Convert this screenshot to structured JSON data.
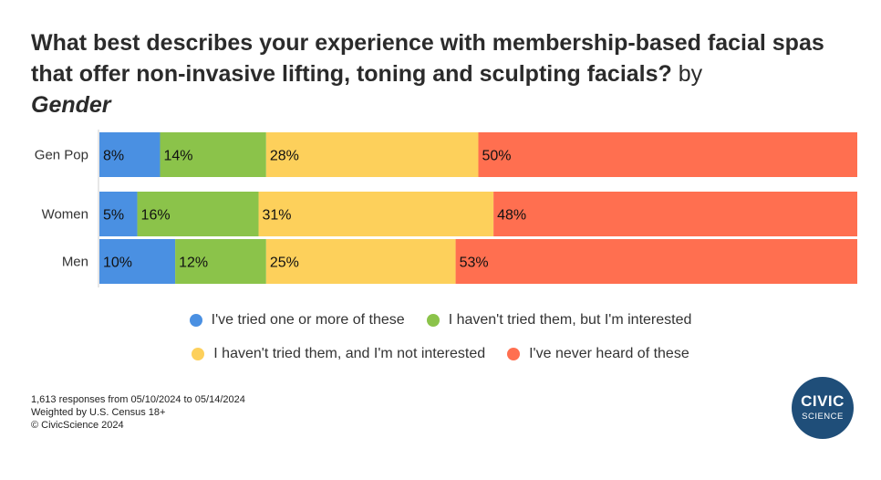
{
  "title": {
    "main": "What best describes your experience with membership-based facial spas that offer non-invasive lifting, toning and sculpting facials?",
    "by": "by",
    "dimension": "Gender"
  },
  "chart_data": {
    "type": "bar",
    "orientation": "horizontal",
    "stacked": true,
    "categories": [
      "Gen Pop",
      "Women",
      "Men"
    ],
    "series": [
      {
        "name": "I've tried one or more of these",
        "color": "#4a90e2",
        "values": [
          8,
          5,
          10
        ]
      },
      {
        "name": "I haven't tried them, but I'm interested",
        "color": "#8bc34a",
        "values": [
          14,
          16,
          12
        ]
      },
      {
        "name": "I haven't tried them, and I'm not interested",
        "color": "#fdd05b",
        "values": [
          28,
          31,
          25
        ]
      },
      {
        "name": "I've never heard of these",
        "color": "#ff6f50",
        "values": [
          50,
          48,
          53
        ]
      }
    ],
    "value_suffix": "%",
    "xlim": [
      0,
      100
    ],
    "legend_position": "bottom"
  },
  "legend": {
    "row1": [
      0,
      1
    ],
    "row2": [
      2,
      3
    ]
  },
  "footnote": {
    "responses": "1,613 responses from 05/10/2024 to 05/14/2024",
    "weighting": "Weighted by U.S. Census 18+",
    "copyright": "© CivicScience 2024"
  },
  "logo": {
    "line1": "CIVIC",
    "line2": "SCIENCE"
  }
}
